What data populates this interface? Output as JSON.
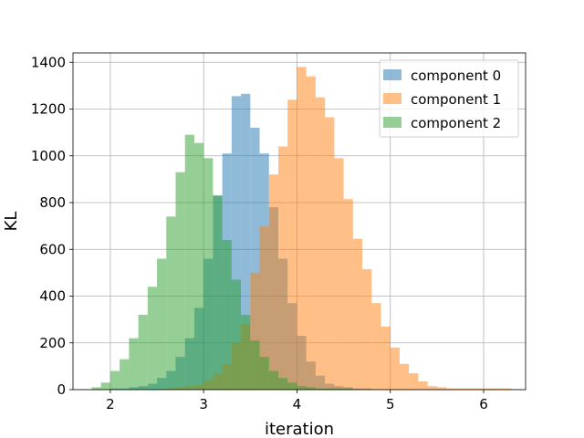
{
  "chart_data": {
    "type": "bar",
    "title": "",
    "xlabel": "iteration",
    "ylabel": "KL",
    "xlim": [
      1.6,
      6.45
    ],
    "ylim": [
      0,
      1440
    ],
    "xticks": [
      2,
      3,
      4,
      5,
      6
    ],
    "yticks": [
      0,
      200,
      400,
      600,
      800,
      1000,
      1200,
      1400
    ],
    "grid": true,
    "legend_position": "top-right",
    "bin_width": 0.1,
    "series": [
      {
        "name": "component 0",
        "color": "#1f77b4",
        "opacity": 0.5,
        "bin_starts": [
          2.0,
          2.1,
          2.2,
          2.3,
          2.4,
          2.5,
          2.6,
          2.7,
          2.8,
          2.9,
          3.0,
          3.1,
          3.2,
          3.3,
          3.4,
          3.5,
          3.6,
          3.7,
          3.8,
          3.9,
          4.0,
          4.1,
          4.2,
          4.3,
          4.4,
          4.5,
          4.6,
          4.7
        ],
        "values": [
          5,
          5,
          10,
          15,
          25,
          50,
          80,
          140,
          220,
          350,
          560,
          830,
          1010,
          1255,
          1265,
          1120,
          1010,
          780,
          560,
          370,
          230,
          120,
          60,
          25,
          15,
          10,
          5,
          5
        ]
      },
      {
        "name": "component 1",
        "color": "#ff7f0e",
        "opacity": 0.5,
        "bin_starts": [
          2.6,
          2.7,
          2.8,
          2.9,
          3.0,
          3.1,
          3.2,
          3.3,
          3.4,
          3.5,
          3.6,
          3.7,
          3.8,
          3.9,
          4.0,
          4.1,
          4.2,
          4.3,
          4.4,
          4.5,
          4.6,
          4.7,
          4.8,
          4.9,
          5.0,
          5.1,
          5.2,
          5.3,
          5.4,
          5.5,
          5.6,
          5.7,
          5.8,
          5.9,
          6.0,
          6.1,
          6.2
        ],
        "values": [
          5,
          10,
          15,
          20,
          40,
          70,
          110,
          200,
          280,
          500,
          700,
          920,
          1040,
          1240,
          1380,
          1340,
          1250,
          1165,
          990,
          815,
          645,
          515,
          370,
          270,
          180,
          110,
          70,
          35,
          15,
          10,
          5,
          5,
          5,
          5,
          5,
          5,
          5
        ]
      },
      {
        "name": "component 2",
        "color": "#2ca02c",
        "opacity": 0.5,
        "bin_starts": [
          1.8,
          1.9,
          2.0,
          2.1,
          2.2,
          2.3,
          2.4,
          2.5,
          2.6,
          2.7,
          2.8,
          2.9,
          3.0,
          3.1,
          3.2,
          3.3,
          3.4,
          3.5,
          3.6,
          3.7,
          3.8,
          3.9,
          4.0,
          4.1,
          4.2,
          4.3,
          4.4,
          4.5
        ],
        "values": [
          10,
          30,
          80,
          130,
          220,
          320,
          440,
          560,
          740,
          930,
          1090,
          1055,
          990,
          830,
          640,
          470,
          320,
          210,
          140,
          80,
          50,
          30,
          15,
          10,
          5,
          5,
          5,
          5
        ]
      }
    ]
  }
}
